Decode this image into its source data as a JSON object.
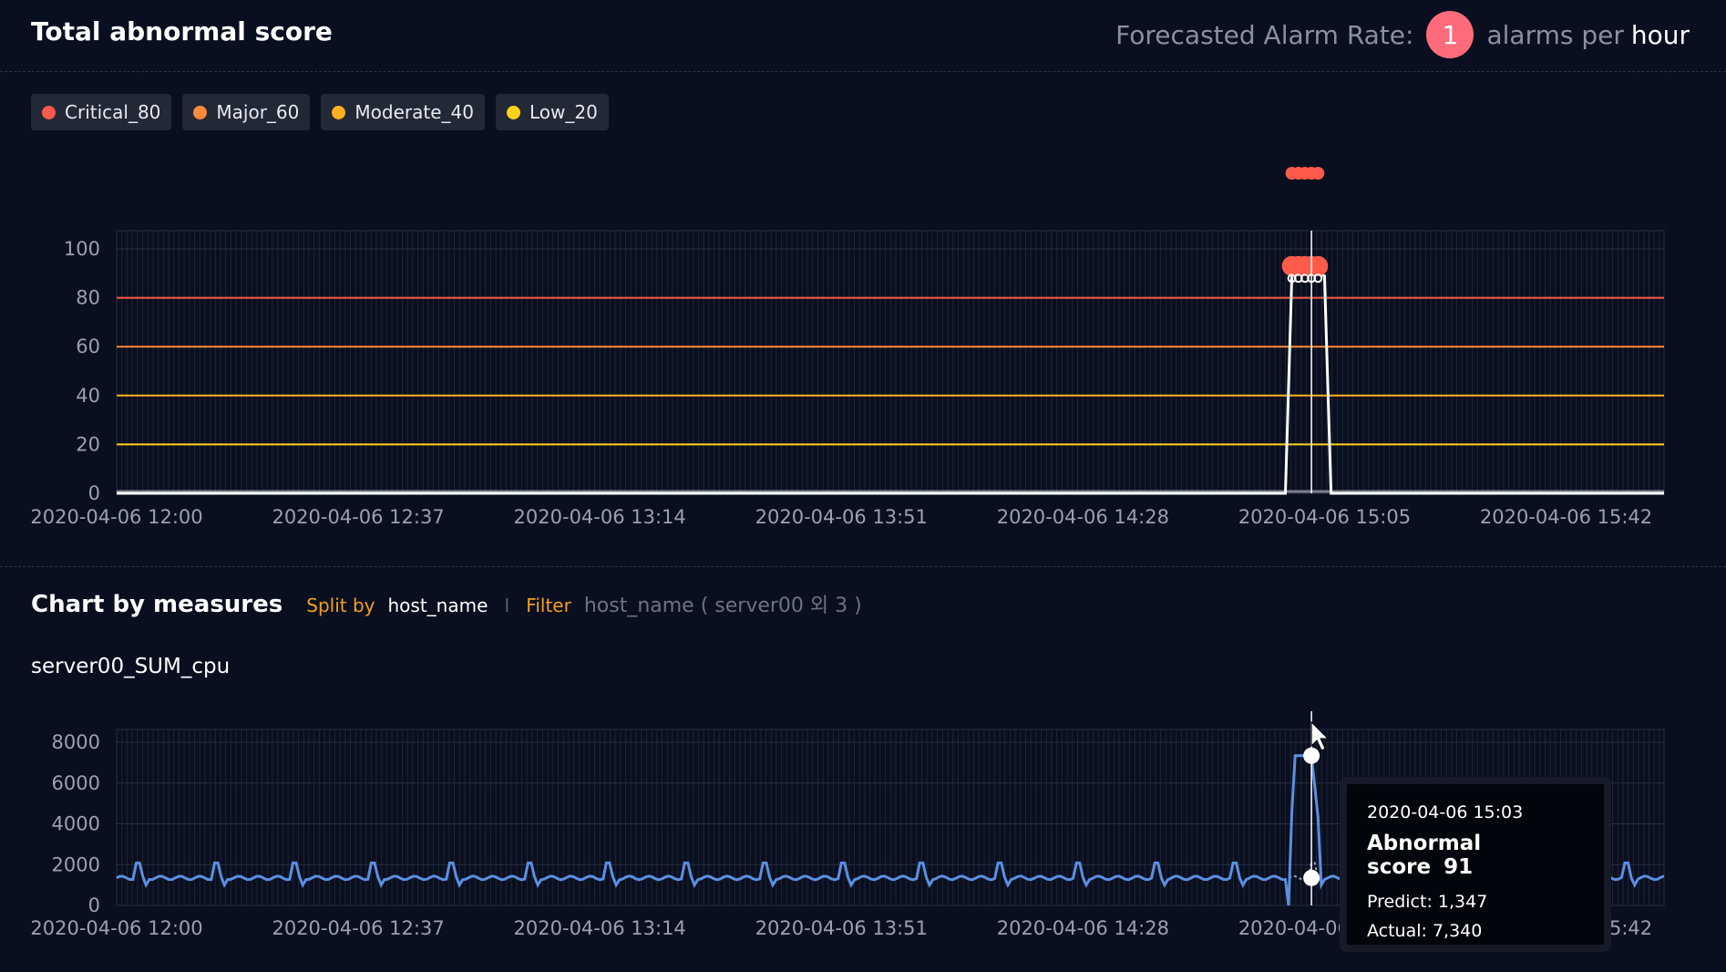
{
  "header": {
    "title": "Total abnormal score",
    "alarm_label": "Forecasted Alarm Rate:",
    "alarm_count": "1",
    "alarm_suffix": "alarms per",
    "alarm_unit": "hour"
  },
  "legend": [
    {
      "label": "Critical_80",
      "color": "#ff5a4a"
    },
    {
      "label": "Major_60",
      "color": "#ff8a3a"
    },
    {
      "label": "Moderate_40",
      "color": "#ffb020"
    },
    {
      "label": "Low_20",
      "color": "#ffd21a"
    }
  ],
  "section2": {
    "title": "Chart by measures",
    "split_label": "Split by",
    "split_value": "host_name",
    "separator": "I",
    "filter_label": "Filter",
    "filter_value": "host_name ( server00 외 3 )",
    "series_name": "server00_SUM_cpu"
  },
  "tooltip": {
    "date": "2020-04-06 15:03",
    "score_label": "Abnormal score",
    "score_value": "91",
    "predict": "Predict: 1,347",
    "actual": "Actual: 7,340"
  },
  "chart_data": [
    {
      "type": "line",
      "title": "Total abnormal score",
      "x_ticks": [
        "2020-04-06 12:00",
        "2020-04-06 12:37",
        "2020-04-06 13:14",
        "2020-04-06 13:51",
        "2020-04-06 14:28",
        "2020-04-06 15:05",
        "2020-04-06 15:42"
      ],
      "y_ticks": [
        0,
        20,
        40,
        60,
        80,
        100
      ],
      "ylim": [
        0,
        100
      ],
      "threshold_lines": [
        {
          "name": "Critical_80",
          "value": 80,
          "color": "#ff5a4a"
        },
        {
          "name": "Major_60",
          "value": 60,
          "color": "#ff8a3a"
        },
        {
          "name": "Moderate_40",
          "value": 40,
          "color": "#ffb020"
        },
        {
          "name": "Low_20",
          "value": 20,
          "color": "#ffd21a"
        }
      ],
      "series": [
        {
          "x": [
            "2020-04-06 12:00",
            "2020-04-06 14:59",
            "2020-04-06 15:00",
            "2020-04-06 15:01",
            "2020-04-06 15:02",
            "2020-04-06 15:03",
            "2020-04-06 15:04",
            "2020-04-06 15:05",
            "2020-04-06 15:06",
            "2020-04-06 15:57"
          ],
          "values": [
            0,
            0,
            89,
            90,
            91,
            91,
            90,
            89,
            0,
            0
          ]
        }
      ],
      "alarms": [
        "2020-04-06 15:00",
        "2020-04-06 15:01",
        "2020-04-06 15:02",
        "2020-04-06 15:03",
        "2020-04-06 15:04"
      ],
      "cursor": "2020-04-06 15:03"
    },
    {
      "type": "line",
      "title": "server00_SUM_cpu",
      "x_ticks": [
        "2020-04-06 12:00",
        "2020-04-06 12:37",
        "2020-04-06 13:14",
        "2020-04-06 13:51",
        "2020-04-06 14:28",
        "2020-04-06 15:05",
        "2020-04-06 15:42"
      ],
      "y_ticks": [
        0,
        2000,
        4000,
        6000,
        8000
      ],
      "ylim": [
        0,
        8000
      ],
      "series": [
        {
          "name": "Actual",
          "color": "#5b8fe0",
          "description_values": {
            "baseline": 1350,
            "periodic_peak": 2450,
            "anomaly_peak": 7340
          }
        },
        {
          "name": "Predict",
          "color": "#b0c4e6",
          "value_at_cursor": 1347
        }
      ],
      "cursor": "2020-04-06 15:03"
    }
  ]
}
